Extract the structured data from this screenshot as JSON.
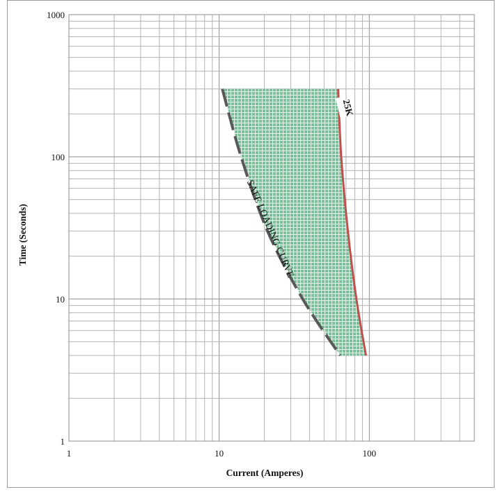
{
  "chart_data": {
    "type": "line",
    "title": "",
    "xlabel": "Current (Amperes)",
    "ylabel": "Time (Seconds)",
    "xscale": "log",
    "yscale": "log",
    "xlim": [
      1,
      500
    ],
    "ylim": [
      1,
      1000
    ],
    "grid": "on (major and minor)",
    "x_ticks": [
      {
        "value": 1,
        "label": "1"
      },
      {
        "value": 10,
        "label": "10"
      },
      {
        "value": 100,
        "label": "100"
      }
    ],
    "y_ticks": [
      {
        "value": 1,
        "label": "1"
      },
      {
        "value": 10,
        "label": "10"
      },
      {
        "value": 100,
        "label": "100"
      },
      {
        "value": 1000,
        "label": "1000"
      }
    ],
    "series": [
      {
        "name": "25K",
        "style": "solid",
        "color": "#c0504d",
        "points": [
          [
            62,
            300
          ],
          [
            65,
            100
          ],
          [
            72,
            30
          ],
          [
            82,
            10
          ],
          [
            95,
            4
          ]
        ]
      },
      {
        "name": "SAFE LOADING CURVE",
        "style": "dashed",
        "color": "#595959",
        "points": [
          [
            10.5,
            300
          ],
          [
            14,
            100
          ],
          [
            21,
            30
          ],
          [
            36,
            10
          ],
          [
            64,
            4
          ]
        ]
      }
    ],
    "shaded_region": {
      "between": [
        "SAFE LOADING CURVE",
        "25K"
      ],
      "color": "#7dbf9b"
    },
    "annotations": [
      {
        "text": "25K",
        "at_series": "25K"
      },
      {
        "text": "SAFE LOADING CURVE",
        "at_series": "SAFE LOADING CURVE"
      }
    ]
  }
}
